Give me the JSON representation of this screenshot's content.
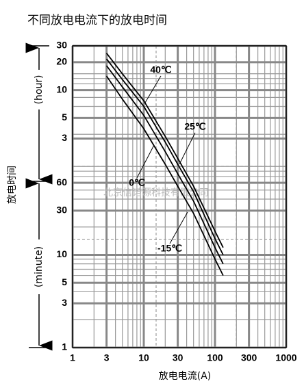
{
  "chart_data": {
    "type": "line",
    "title": "不同放电电流下的放电时间",
    "x_label": "放电电流(A)",
    "y_label": "放电时间",
    "y_sections": [
      "(hour)",
      "(minute)"
    ],
    "watermark": "北京信诺源科技有限公司",
    "log_x": true,
    "log_y": true,
    "grid": true,
    "xlim": [
      1,
      1000
    ],
    "xticks": [
      1,
      3,
      10,
      30,
      100,
      300,
      1000
    ],
    "ylim": [
      1,
      1800
    ],
    "yticks": [
      {
        "value": 1800,
        "label": "30"
      },
      {
        "value": 1200,
        "label": "20"
      },
      {
        "value": 600,
        "label": "10"
      },
      {
        "value": 300,
        "label": "5"
      },
      {
        "value": 180,
        "label": "3"
      },
      60,
      30,
      10,
      5,
      3,
      1
    ],
    "x": [
      3,
      5,
      10,
      20,
      30,
      50,
      100,
      130
    ],
    "series": [
      {
        "name": "40℃",
        "color": "#000000",
        "values": [
          1500,
          900,
          460,
          190,
          110,
          55,
          18,
          12
        ]
      },
      {
        "name": "25℃",
        "color": "#000000",
        "values": [
          1300,
          780,
          400,
          165,
          95,
          48,
          15,
          10
        ]
      },
      {
        "name": "0℃",
        "color": "#000000",
        "values": [
          1100,
          650,
          320,
          130,
          75,
          38,
          12,
          8
        ]
      },
      {
        "name": "-15℃",
        "color": "#000000",
        "values": [
          850,
          480,
          230,
          95,
          55,
          28,
          9,
          6
        ]
      }
    ]
  }
}
